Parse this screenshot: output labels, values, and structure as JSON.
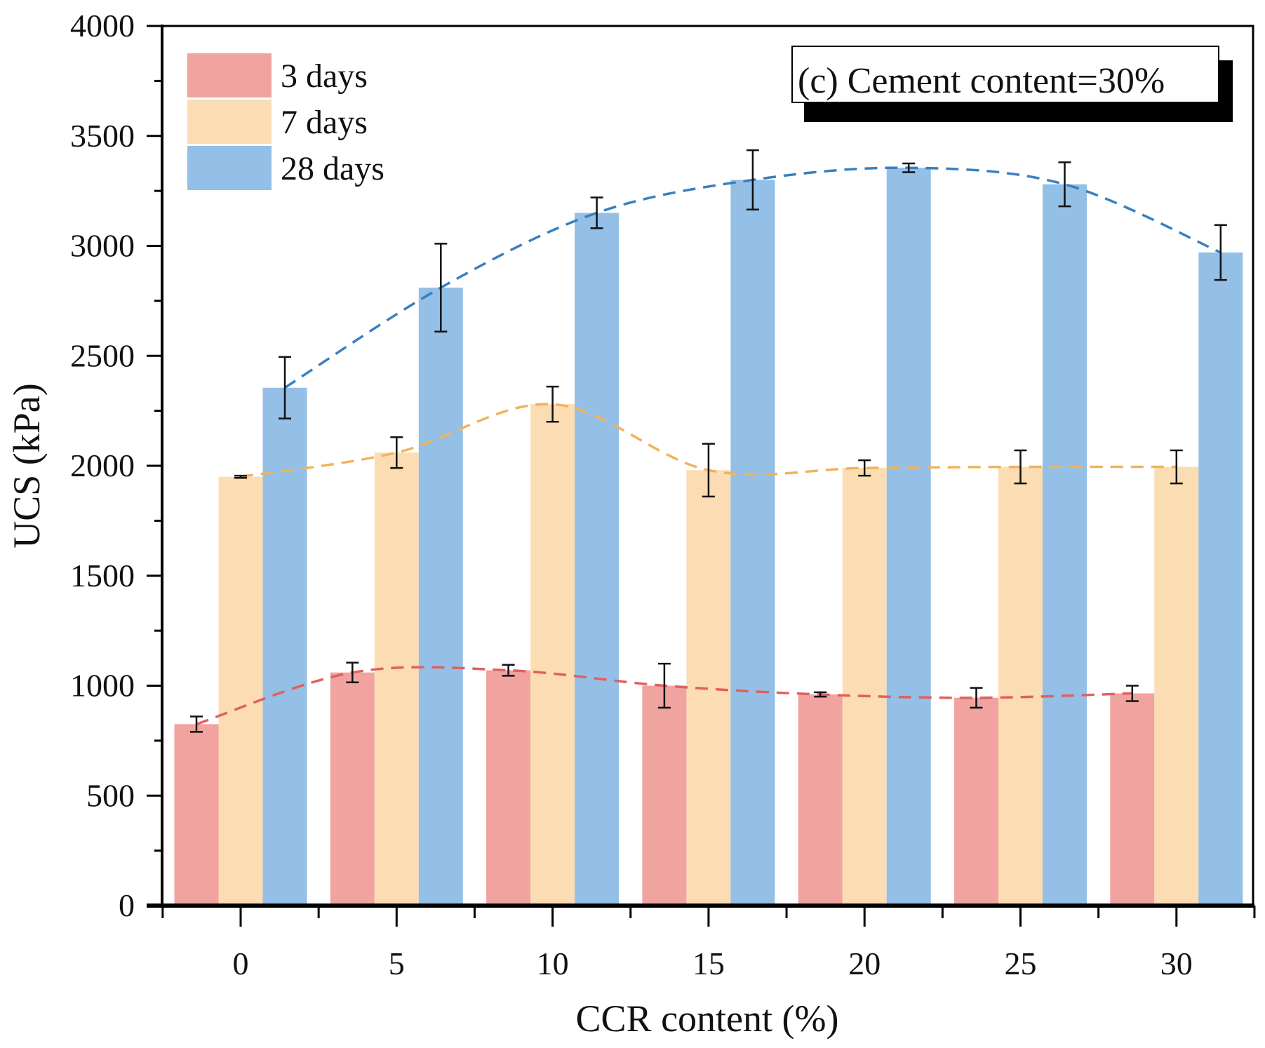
{
  "chart_data": {
    "type": "bar",
    "xlabel": "CCR content (%)",
    "ylabel": "UCS (kPa)",
    "annotation": "(c) Cement content=30%",
    "categories": [
      "0",
      "5",
      "10",
      "15",
      "20",
      "25",
      "30"
    ],
    "ylim": [
      0,
      4000
    ],
    "yticks": [
      "0",
      "500",
      "1000",
      "1500",
      "2000",
      "2500",
      "3000",
      "3500",
      "4000"
    ],
    "legend_position": "top-left",
    "grid": false,
    "series": [
      {
        "name": "3 days",
        "color": "#f0a39f",
        "line_color": "#e06060",
        "values": [
          825,
          1060,
          1070,
          1000,
          960,
          945,
          965
        ],
        "errors": [
          35,
          45,
          25,
          100,
          10,
          45,
          35
        ]
      },
      {
        "name": "7 days",
        "color": "#fbdcb3",
        "line_color": "#f0b35c",
        "values": [
          1950,
          2060,
          2280,
          1980,
          1990,
          1995,
          1995
        ],
        "errors": [
          5,
          70,
          80,
          120,
          35,
          75,
          75
        ]
      },
      {
        "name": "28 days",
        "color": "#94bfe6",
        "line_color": "#3a7fc0",
        "values": [
          2355,
          2810,
          3150,
          3300,
          3355,
          3280,
          2970
        ],
        "errors": [
          140,
          200,
          70,
          135,
          20,
          100,
          125
        ]
      }
    ]
  }
}
